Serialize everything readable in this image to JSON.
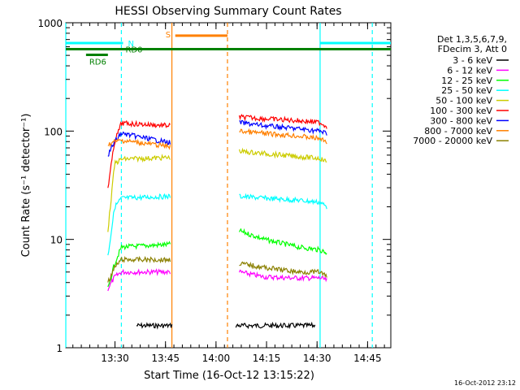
{
  "chart_data": {
    "type": "line",
    "title": "HESSI Observing Summary Count Rates",
    "xlabel": "Start Time (16-Oct-12 13:15:22)",
    "ylabel": "Count Rate (s⁻¹ detector⁻¹)",
    "x_unit": "minutes after 13:15:22",
    "xlim": [
      0,
      96.5
    ],
    "ylim": [
      1,
      1000
    ],
    "yscale": "log",
    "x_ticks": [
      {
        "value": 14.6,
        "label": "13:30"
      },
      {
        "value": 29.6,
        "label": "13:45"
      },
      {
        "value": 44.6,
        "label": "14:00"
      },
      {
        "value": 59.6,
        "label": "14:15"
      },
      {
        "value": 74.6,
        "label": "14:30"
      },
      {
        "value": 89.6,
        "label": "14:45"
      }
    ],
    "y_ticks": [
      {
        "value": 1,
        "label": "1"
      },
      {
        "value": 10,
        "label": "10"
      },
      {
        "value": 100,
        "label": "100"
      },
      {
        "value": 1000,
        "label": "1000"
      }
    ],
    "legend_header": [
      "Det 1,3,5,6,7,9,",
      "FDecim 3, Att 0"
    ],
    "legend_position": "right",
    "series": [
      {
        "name": "3 - 6 keV",
        "color": "#000000",
        "segments": [
          {
            "x": [
              21,
              31.5
            ],
            "y": [
              1.6,
              1.6
            ]
          },
          {
            "x": [
              50.5,
              74
            ],
            "y": [
              1.6,
              1.6
            ]
          }
        ]
      },
      {
        "name": "6 - 12 keV",
        "color": "#ff00ff",
        "segments": [
          {
            "x": [
              12.5,
              14.5,
              16.5,
              31
            ],
            "y": [
              3.5,
              4.5,
              5,
              5
            ]
          },
          {
            "x": [
              51.5,
              59,
              69,
              75.5,
              77.5
            ],
            "y": [
              5,
              4.5,
              4.4,
              4.4,
              4.2
            ]
          }
        ]
      },
      {
        "name": "12 - 25 keV",
        "color": "#00ff00",
        "segments": [
          {
            "x": [
              12.5,
              14.5,
              16.5,
              31
            ],
            "y": [
              3.5,
              6,
              8.5,
              9
            ]
          },
          {
            "x": [
              51.5,
              59,
              69,
              75.5,
              77.5
            ],
            "y": [
              12,
              10,
              8.5,
              8,
              7.5
            ]
          }
        ]
      },
      {
        "name": "25 - 50 keV",
        "color": "#00ffff",
        "segments": [
          {
            "x": [
              12.5,
              14.5,
              16.5,
              31
            ],
            "y": [
              7,
              20,
              24,
              25
            ]
          },
          {
            "x": [
              51.5,
              59,
              69,
              75.5,
              77.5
            ],
            "y": [
              25,
              24,
              23,
              22,
              20
            ]
          }
        ]
      },
      {
        "name": "50 - 100 keV",
        "color": "#cccc00",
        "segments": [
          {
            "x": [
              12.5,
              14.5,
              16.5,
              31
            ],
            "y": [
              12,
              50,
              55,
              57
            ]
          },
          {
            "x": [
              51.5,
              59,
              69,
              75.5,
              77.5
            ],
            "y": [
              65,
              62,
              58,
              56,
              52
            ]
          }
        ]
      },
      {
        "name": "100 - 300 keV",
        "color": "#ff0000",
        "segments": [
          {
            "x": [
              12.5,
              14.5,
              16.5,
              31
            ],
            "y": [
              30,
              80,
              118,
              112
            ]
          },
          {
            "x": [
              51.5,
              59,
              69,
              75.5,
              77.5
            ],
            "y": [
              135,
              130,
              125,
              120,
              110
            ]
          }
        ]
      },
      {
        "name": "300 - 800 keV",
        "color": "#0000ff",
        "segments": [
          {
            "x": [
              12.5,
              14.5,
              16.5,
              31
            ],
            "y": [
              60,
              80,
              95,
              78
            ]
          },
          {
            "x": [
              51.5,
              59,
              69,
              75.5,
              77.5
            ],
            "y": [
              120,
              112,
              105,
              100,
              95
            ]
          }
        ]
      },
      {
        "name": "800 - 7000 keV",
        "color": "#ff8000",
        "segments": [
          {
            "x": [
              12.5,
              14.5,
              16.5,
              31
            ],
            "y": [
              75,
              80,
              82,
              72
            ]
          },
          {
            "x": [
              51.5,
              59,
              69,
              75.5,
              77.5
            ],
            "y": [
              100,
              95,
              90,
              85,
              80
            ]
          }
        ]
      },
      {
        "name": "7000 - 20000 keV",
        "color": "#8b8000",
        "segments": [
          {
            "x": [
              12.5,
              14.5,
              16.5,
              31
            ],
            "y": [
              4,
              5.5,
              6.5,
              6.5
            ]
          },
          {
            "x": [
              51.5,
              59,
              69,
              75.5,
              77.5
            ],
            "y": [
              6,
              5.5,
              5,
              5,
              4.5
            ]
          }
        ]
      }
    ],
    "flags": [
      {
        "label": "N",
        "color": "#00ffff",
        "y": 650,
        "segments": [
          [
            0,
            17
          ],
          [
            75.5,
            96.5
          ]
        ]
      },
      {
        "label": "S",
        "color": "#ff8000",
        "y": 760,
        "segments": [
          [
            32.5,
            48
          ]
        ]
      },
      {
        "label": "RD6",
        "color": "#008000",
        "y": 505,
        "segments": [
          [
            6,
            12.5
          ]
        ]
      },
      {
        "label": "RD0",
        "color": "#008000",
        "y": 570,
        "segments": [
          [
            0,
            96.5
          ]
        ]
      }
    ],
    "vlines": [
      {
        "x": 0,
        "color": "#00ffff",
        "dash": false
      },
      {
        "x": 16.5,
        "color": "#00ffff",
        "dash": true
      },
      {
        "x": 31.5,
        "color": "#ff8000",
        "dash": false
      },
      {
        "x": 48,
        "color": "#ff8000",
        "dash": true
      },
      {
        "x": 75.5,
        "color": "#00ffff",
        "dash": false
      },
      {
        "x": 91,
        "color": "#00ffff",
        "dash": true
      }
    ]
  },
  "footer": {
    "timestamp": "16-Oct-2012 23:12"
  }
}
